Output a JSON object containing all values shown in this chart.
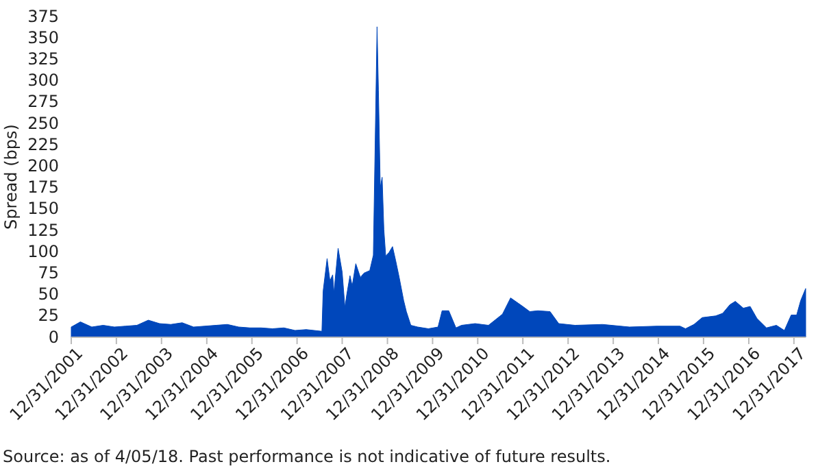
{
  "chart_data": {
    "type": "area",
    "ylabel": "Spread (bps)",
    "annotations": [
      "Source: as of 4/05/18. Past performance is not indicative of future results."
    ],
    "x": [
      "2001-12-31",
      "2002-03-15",
      "2002-06-15",
      "2002-09-15",
      "2002-12-15",
      "2003-03-15",
      "2003-06-15",
      "2003-09-15",
      "2003-12-15",
      "2004-03-15",
      "2004-06-15",
      "2004-09-15",
      "2004-12-15",
      "2005-03-15",
      "2005-06-15",
      "2005-09-15",
      "2005-12-15",
      "2006-03-15",
      "2006-06-15",
      "2006-09-15",
      "2006-12-15",
      "2007-03-15",
      "2007-07-20",
      "2007-07-30",
      "2007-08-31",
      "2007-09-23",
      "2007-10-15",
      "2007-10-25",
      "2007-11-28",
      "2007-12-31",
      "2008-01-22",
      "2008-02-06",
      "2008-03-03",
      "2008-03-21",
      "2008-04-19",
      "2008-05-26",
      "2008-06-24",
      "2008-08-10",
      "2008-09-08",
      "2008-09-23",
      "2008-10-08",
      "2008-10-19",
      "2008-11-03",
      "2008-11-18",
      "2008-12-02",
      "2008-12-17",
      "2009-01-12",
      "2009-02-10",
      "2009-03-07",
      "2009-04-05",
      "2009-05-11",
      "2009-06-02",
      "2009-07-08",
      "2009-09-01",
      "2009-11-27",
      "2010-02-13",
      "2010-03-18",
      "2010-05-11",
      "2010-07-08",
      "2010-08-22",
      "2010-12-10",
      "2011-03-28",
      "2011-07-19",
      "2011-09-23",
      "2011-12-31",
      "2012-02-25",
      "2012-05-01",
      "2012-08-07",
      "2012-10-16",
      "2013-02-25",
      "2013-10-05",
      "2014-05-11",
      "2014-12-20",
      "2015-06-24",
      "2015-08-07",
      "2015-10-15",
      "2015-12-20",
      "2016-04-08",
      "2016-06-03",
      "2016-07-31",
      "2016-09-13",
      "2016-11-17",
      "2017-01-11",
      "2017-03-07",
      "2017-05-23",
      "2017-08-11",
      "2017-10-15",
      "2017-12-09",
      "2018-01-22",
      "2018-02-24",
      "2018-04-05"
    ],
    "series": [
      {
        "color": "#0047bb",
        "values": [
          12,
          18,
          12,
          14,
          12,
          13,
          14,
          20,
          16,
          15,
          17,
          12,
          13,
          14,
          15,
          12,
          11,
          11,
          10,
          11,
          8,
          9,
          7,
          54,
          92,
          66,
          73,
          52,
          104,
          76,
          35,
          50,
          72,
          60,
          86,
          70,
          75,
          78,
          96,
          230,
          363,
          289,
          175,
          187,
          126,
          95,
          99,
          106,
          90,
          70,
          43,
          30,
          14,
          12,
          10,
          12,
          31,
          31,
          11,
          14,
          16,
          14,
          27,
          46,
          36,
          30,
          31,
          30,
          16,
          14,
          15,
          12,
          13,
          13,
          10,
          15,
          23,
          25,
          28,
          38,
          42,
          34,
          36,
          22,
          11,
          14,
          8,
          26,
          26,
          43,
          57
        ]
      }
    ],
    "xlim": [
      "2001-12-31",
      "2018-04-05"
    ],
    "xticks": [
      {
        "value": "2001-12-31",
        "label": "12/31/2001"
      },
      {
        "value": "2002-12-31",
        "label": "12/31/2002"
      },
      {
        "value": "2003-12-31",
        "label": "12/31/2003"
      },
      {
        "value": "2004-12-31",
        "label": "12/31/2004"
      },
      {
        "value": "2005-12-31",
        "label": "12/31/2005"
      },
      {
        "value": "2006-12-31",
        "label": "12/31/2006"
      },
      {
        "value": "2007-12-31",
        "label": "12/31/2007"
      },
      {
        "value": "2008-12-31",
        "label": "12/31/2008"
      },
      {
        "value": "2009-12-31",
        "label": "12/31/2009"
      },
      {
        "value": "2010-12-31",
        "label": "12/31/2010"
      },
      {
        "value": "2011-12-31",
        "label": "12/31/2011"
      },
      {
        "value": "2012-12-31",
        "label": "12/31/2012"
      },
      {
        "value": "2013-12-31",
        "label": "12/31/2013"
      },
      {
        "value": "2014-12-31",
        "label": "12/31/2014"
      },
      {
        "value": "2015-12-31",
        "label": "12/31/2015"
      },
      {
        "value": "2016-12-31",
        "label": "12/31/2016"
      },
      {
        "value": "2017-12-31",
        "label": "12/31/2017"
      }
    ],
    "ylim": [
      0,
      375
    ],
    "yticks": [
      0,
      25,
      50,
      75,
      100,
      125,
      150,
      175,
      200,
      225,
      250,
      275,
      300,
      325,
      350,
      375
    ]
  }
}
